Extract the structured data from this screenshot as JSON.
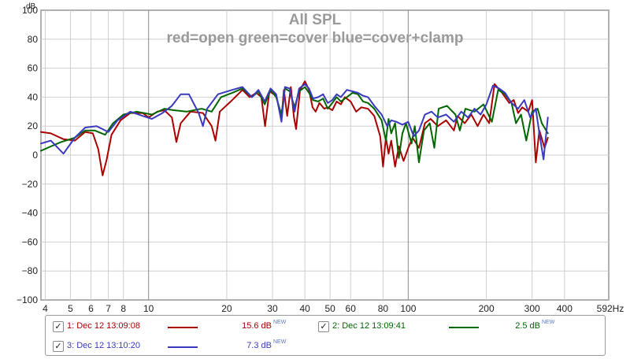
{
  "chart_data": {
    "type": "line",
    "title": "All SPL",
    "subtitle": "red=open green=cover blue=cover+clamp",
    "ylabel": "dB",
    "xlabel": "",
    "x_scale": "log",
    "xlim": [
      3.85,
      592
    ],
    "ylim": [
      -100,
      100
    ],
    "grid": true,
    "x_ticks": [
      4,
      5,
      6,
      7,
      8,
      10,
      20,
      30,
      40,
      50,
      60,
      80,
      100,
      200,
      300,
      400
    ],
    "x_tick_labels": [
      "4",
      "5",
      "6",
      "7",
      "8",
      "10",
      "20",
      "30",
      "40",
      "50",
      "60",
      "80",
      "100",
      "200",
      "300",
      "400"
    ],
    "x_end_label": "592Hz",
    "y_ticks": [
      -100,
      -80,
      -60,
      -40,
      -20,
      0,
      20,
      40,
      60,
      80,
      100
    ],
    "y_tick_labels": [
      "−100",
      "−80",
      "−60",
      "−40",
      "−20",
      "0",
      "20",
      "40",
      "60",
      "80",
      "100"
    ],
    "series": [
      {
        "name": "1: Dec 12 13:09:08",
        "color": "#aa0000",
        "points": [
          [
            3.85,
            16
          ],
          [
            4.2,
            15
          ],
          [
            4.7,
            11
          ],
          [
            5.2,
            10
          ],
          [
            5.7,
            16
          ],
          [
            6.1,
            15
          ],
          [
            6.4,
            4
          ],
          [
            6.65,
            -14
          ],
          [
            6.9,
            -3
          ],
          [
            7.2,
            14
          ],
          [
            7.8,
            24
          ],
          [
            8.5,
            29
          ],
          [
            9.5,
            29
          ],
          [
            10,
            26
          ],
          [
            10.8,
            30
          ],
          [
            11.5,
            31
          ],
          [
            12.3,
            26
          ],
          [
            12.8,
            9
          ],
          [
            13.3,
            22
          ],
          [
            14.5,
            30
          ],
          [
            16.2,
            29
          ],
          [
            17.5,
            20
          ],
          [
            18.1,
            10
          ],
          [
            18.8,
            30
          ],
          [
            21,
            38
          ],
          [
            23,
            45
          ],
          [
            24.5,
            40
          ],
          [
            26,
            43
          ],
          [
            27.2,
            40
          ],
          [
            28.1,
            20
          ],
          [
            29.2,
            44
          ],
          [
            31,
            41
          ],
          [
            32.5,
            25
          ],
          [
            33.2,
            45
          ],
          [
            34.2,
            27
          ],
          [
            35.3,
            47
          ],
          [
            36.3,
            26
          ],
          [
            37,
            18
          ],
          [
            38.3,
            45
          ],
          [
            40,
            51
          ],
          [
            41.5,
            45
          ],
          [
            42.8,
            33
          ],
          [
            44,
            30
          ],
          [
            45.5,
            36
          ],
          [
            47.5,
            32
          ],
          [
            49,
            33
          ],
          [
            51,
            31
          ],
          [
            53,
            37
          ],
          [
            55,
            35
          ],
          [
            57,
            40
          ],
          [
            60,
            37
          ],
          [
            63,
            30
          ],
          [
            66,
            33
          ],
          [
            70,
            32
          ],
          [
            74,
            27
          ],
          [
            78,
            13
          ],
          [
            80,
            -8
          ],
          [
            82,
            12
          ],
          [
            84,
            1
          ],
          [
            86,
            10
          ],
          [
            89,
            -8
          ],
          [
            92,
            6
          ],
          [
            96,
            -4
          ],
          [
            100,
            5
          ],
          [
            104,
            12
          ],
          [
            110,
            5
          ],
          [
            116,
            22
          ],
          [
            122,
            25
          ],
          [
            130,
            20
          ],
          [
            140,
            24
          ],
          [
            150,
            17
          ],
          [
            155,
            27
          ],
          [
            165,
            22
          ],
          [
            175,
            28
          ],
          [
            185,
            20
          ],
          [
            195,
            28
          ],
          [
            205,
            22
          ],
          [
            215,
            49
          ],
          [
            230,
            43
          ],
          [
            245,
            36
          ],
          [
            255,
            38
          ],
          [
            265,
            29
          ],
          [
            275,
            33
          ],
          [
            290,
            30
          ],
          [
            300,
            38
          ],
          [
            310,
            -5
          ],
          [
            320,
            17
          ],
          [
            335,
            5
          ],
          [
            345,
            12
          ]
        ]
      },
      {
        "name": "2: Dec 12 13:09:41",
        "color": "#006600",
        "points": [
          [
            3.85,
            3
          ],
          [
            4.2,
            6
          ],
          [
            4.6,
            9
          ],
          [
            5.2,
            12
          ],
          [
            5.7,
            17
          ],
          [
            6.2,
            17
          ],
          [
            6.8,
            14
          ],
          [
            7.3,
            22
          ],
          [
            8,
            28
          ],
          [
            9,
            30
          ],
          [
            10.3,
            28
          ],
          [
            11.5,
            32
          ],
          [
            12.5,
            31
          ],
          [
            14,
            30
          ],
          [
            16,
            32
          ],
          [
            17.5,
            30
          ],
          [
            19,
            40
          ],
          [
            21,
            43
          ],
          [
            23,
            46
          ],
          [
            25,
            40
          ],
          [
            26.5,
            44
          ],
          [
            28,
            35
          ],
          [
            29.5,
            45
          ],
          [
            31,
            40
          ],
          [
            32.5,
            28
          ],
          [
            33.5,
            46
          ],
          [
            35,
            44
          ],
          [
            36.5,
            33
          ],
          [
            38,
            44
          ],
          [
            40,
            47
          ],
          [
            41.5,
            43
          ],
          [
            43,
            38
          ],
          [
            45,
            37
          ],
          [
            47,
            39
          ],
          [
            49,
            32
          ],
          [
            51,
            36
          ],
          [
            53,
            40
          ],
          [
            55,
            37
          ],
          [
            58,
            40
          ],
          [
            61,
            43
          ],
          [
            64,
            42
          ],
          [
            67,
            37
          ],
          [
            70,
            36
          ],
          [
            74,
            32
          ],
          [
            79,
            24
          ],
          [
            82,
            10
          ],
          [
            84,
            25
          ],
          [
            86,
            15
          ],
          [
            89,
            22
          ],
          [
            92,
            -2
          ],
          [
            95,
            15
          ],
          [
            98,
            22
          ],
          [
            103,
            8
          ],
          [
            106,
            20
          ],
          [
            110,
            -5
          ],
          [
            115,
            17
          ],
          [
            121,
            22
          ],
          [
            126,
            5
          ],
          [
            131,
            32
          ],
          [
            141,
            34
          ],
          [
            152,
            28
          ],
          [
            158,
            17
          ],
          [
            166,
            32
          ],
          [
            180,
            30
          ],
          [
            195,
            35
          ],
          [
            210,
            23
          ],
          [
            222,
            45
          ],
          [
            236,
            42
          ],
          [
            250,
            36
          ],
          [
            260,
            22
          ],
          [
            272,
            28
          ],
          [
            285,
            10
          ],
          [
            300,
            30
          ],
          [
            315,
            32
          ],
          [
            327,
            22
          ],
          [
            345,
            15
          ]
        ]
      },
      {
        "name": "3: Dec 12 13:10:20",
        "color": "#3a3abf",
        "points": [
          [
            3.85,
            8
          ],
          [
            4.2,
            10
          ],
          [
            4.7,
            1
          ],
          [
            5.2,
            12
          ],
          [
            5.7,
            19
          ],
          [
            6.3,
            20
          ],
          [
            7,
            16
          ],
          [
            7.6,
            24
          ],
          [
            8.5,
            30
          ],
          [
            9.5,
            27
          ],
          [
            10.3,
            25
          ],
          [
            11.3,
            29
          ],
          [
            12.3,
            34
          ],
          [
            13.3,
            42
          ],
          [
            14.3,
            42
          ],
          [
            15.6,
            29
          ],
          [
            16.2,
            20
          ],
          [
            16.8,
            32
          ],
          [
            18.5,
            42
          ],
          [
            21,
            45
          ],
          [
            23,
            47
          ],
          [
            25,
            40
          ],
          [
            26.5,
            45
          ],
          [
            28,
            37
          ],
          [
            29.5,
            46
          ],
          [
            31,
            42
          ],
          [
            32.5,
            23
          ],
          [
            33.5,
            47
          ],
          [
            35,
            46
          ],
          [
            36.5,
            30
          ],
          [
            38,
            46
          ],
          [
            40,
            49
          ],
          [
            41.5,
            46
          ],
          [
            43,
            39
          ],
          [
            45,
            40
          ],
          [
            47,
            42
          ],
          [
            49,
            36
          ],
          [
            51,
            38
          ],
          [
            53,
            42
          ],
          [
            55,
            40
          ],
          [
            58,
            45
          ],
          [
            61,
            44
          ],
          [
            64,
            43
          ],
          [
            67,
            41
          ],
          [
            70,
            40
          ],
          [
            74,
            34
          ],
          [
            79,
            28
          ],
          [
            83,
            20
          ],
          [
            86,
            24
          ],
          [
            90,
            23
          ],
          [
            95,
            21
          ],
          [
            100,
            23
          ],
          [
            105,
            13
          ],
          [
            110,
            17
          ],
          [
            116,
            28
          ],
          [
            123,
            30
          ],
          [
            130,
            26
          ],
          [
            140,
            28
          ],
          [
            150,
            23
          ],
          [
            160,
            30
          ],
          [
            170,
            26
          ],
          [
            180,
            32
          ],
          [
            190,
            28
          ],
          [
            200,
            35
          ],
          [
            212,
            48
          ],
          [
            224,
            46
          ],
          [
            236,
            43
          ],
          [
            250,
            36
          ],
          [
            265,
            32
          ],
          [
            280,
            38
          ],
          [
            295,
            26
          ],
          [
            310,
            32
          ],
          [
            320,
            15
          ],
          [
            332,
            -3
          ],
          [
            345,
            26
          ]
        ]
      }
    ]
  },
  "legend": {
    "entries": [
      {
        "label": "1: Dec 12 13:09:08",
        "value": "15.6 dB",
        "badge": "NEW",
        "color": "#aa0000",
        "checked": true
      },
      {
        "label": "2: Dec 12 13:09:41",
        "value": "2.5 dB",
        "badge": "NEW",
        "color": "#006600",
        "checked": true
      },
      {
        "label": "3: Dec 12 13:10:20",
        "value": "7.3 dB",
        "badge": "NEW",
        "color": "#3a3abf",
        "checked": true
      }
    ],
    "check_glyph": "✓"
  }
}
